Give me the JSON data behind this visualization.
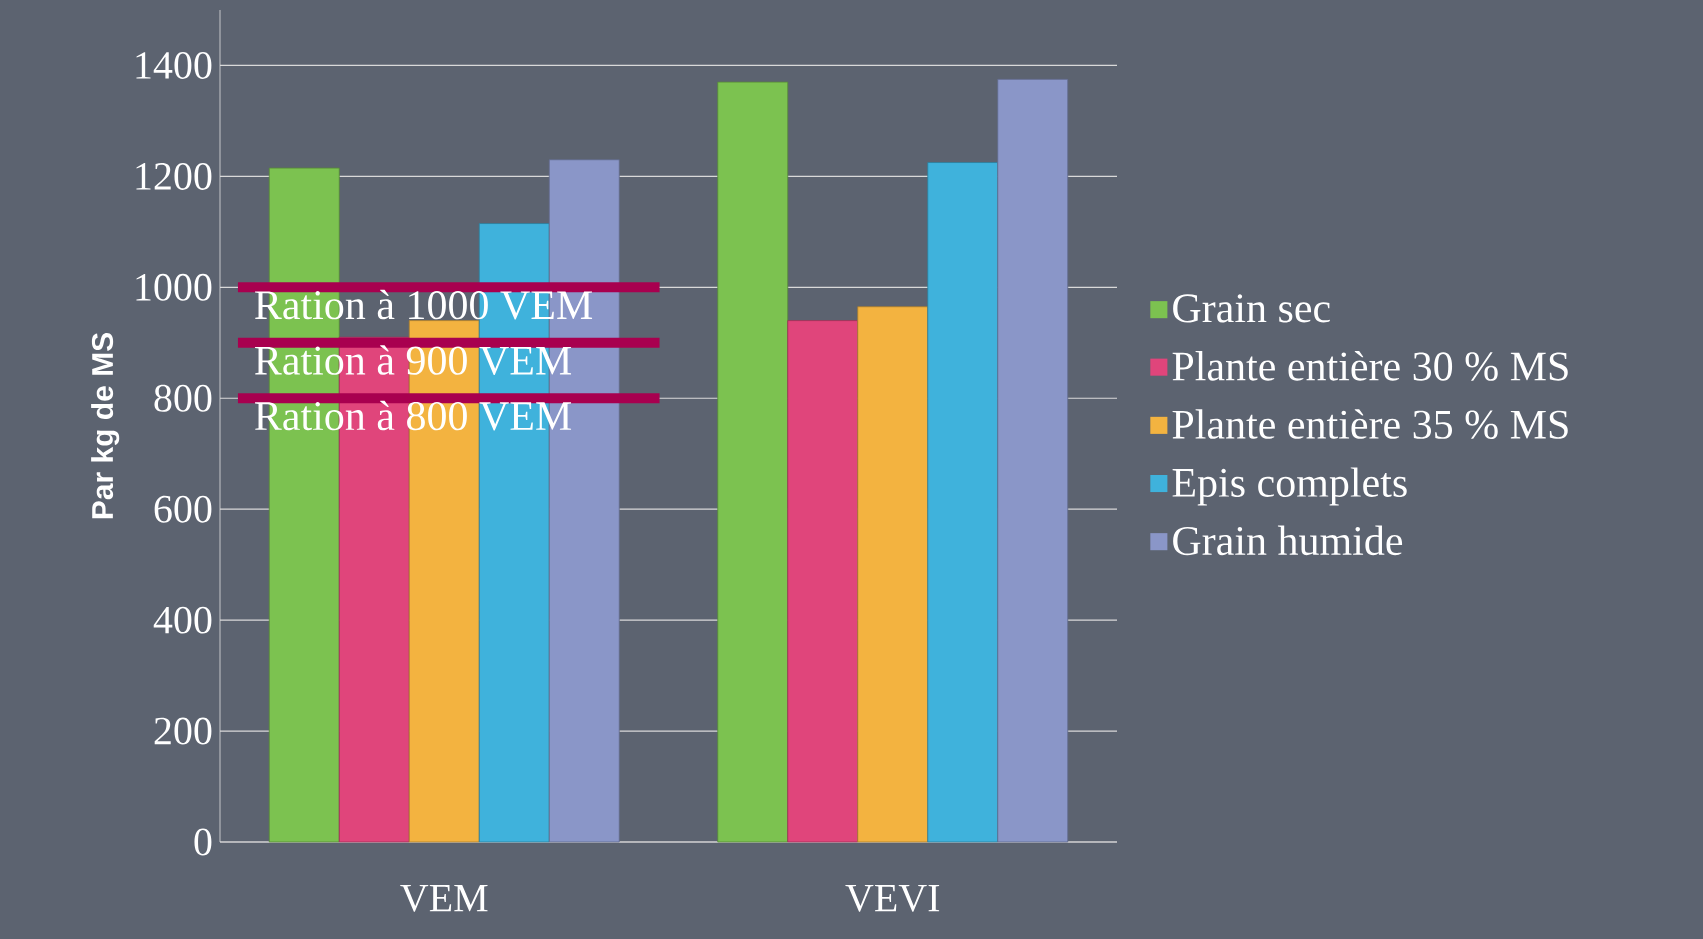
{
  "chart_data": {
    "type": "bar",
    "ylabel": "Par kg de MS",
    "categories": [
      "VEM",
      "VEVI"
    ],
    "series": [
      {
        "name": "Grain sec",
        "color": "#7cc250",
        "values": [
          1215,
          1370
        ]
      },
      {
        "name": "Plante entière 30 % MS",
        "color": "#e0457b",
        "values": [
          910,
          940
        ]
      },
      {
        "name": "Plante entière 35 % MS",
        "color": "#f3b340",
        "values": [
          940,
          965
        ]
      },
      {
        "name": "Epis complets",
        "color": "#3fb2dc",
        "values": [
          1115,
          1225
        ]
      },
      {
        "name": "Grain humide",
        "color": "#8a96c8",
        "values": [
          1230,
          1375
        ]
      }
    ],
    "ylim": [
      0,
      1500
    ],
    "yticks": [
      0,
      200,
      400,
      600,
      800,
      1000,
      1200,
      1400
    ],
    "grid": "y",
    "legend": "right",
    "ref_lines": [
      {
        "axis": "y",
        "value": 1000,
        "label": "Ration à 1000 VEM",
        "color": "#a8004f"
      },
      {
        "axis": "y",
        "value": 900,
        "label": "Ration à 900 VEM",
        "color": "#a8004f"
      },
      {
        "axis": "y",
        "value": 800,
        "label": "Ration à 800 VEM",
        "color": "#a8004f"
      }
    ]
  }
}
